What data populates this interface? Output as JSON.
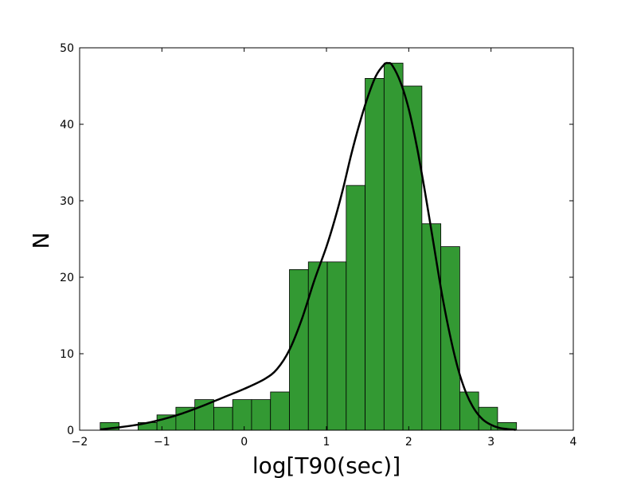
{
  "chart_data": {
    "type": "bar",
    "xlabel": "log[T90(sec)]",
    "ylabel": "N",
    "xlim": [
      -2,
      4
    ],
    "ylim": [
      0,
      50
    ],
    "xticks": [
      -2,
      -1,
      0,
      1,
      2,
      3,
      4
    ],
    "yticks": [
      0,
      10,
      20,
      30,
      40,
      50
    ],
    "bin_width": 0.23,
    "bins": [
      {
        "start": -1.75,
        "count": 1
      },
      {
        "start": -1.52,
        "count": 0
      },
      {
        "start": -1.29,
        "count": 1
      },
      {
        "start": -1.06,
        "count": 2
      },
      {
        "start": -0.83,
        "count": 3
      },
      {
        "start": -0.6,
        "count": 4
      },
      {
        "start": -0.37,
        "count": 3
      },
      {
        "start": -0.14,
        "count": 4
      },
      {
        "start": 0.09,
        "count": 4
      },
      {
        "start": 0.32,
        "count": 5
      },
      {
        "start": 0.55,
        "count": 21
      },
      {
        "start": 0.78,
        "count": 22
      },
      {
        "start": 1.01,
        "count": 22
      },
      {
        "start": 1.24,
        "count": 32
      },
      {
        "start": 1.47,
        "count": 46
      },
      {
        "start": 1.7,
        "count": 48
      },
      {
        "start": 1.93,
        "count": 45
      },
      {
        "start": 2.16,
        "count": 27
      },
      {
        "start": 2.39,
        "count": 24
      },
      {
        "start": 2.62,
        "count": 5
      },
      {
        "start": 2.85,
        "count": 3
      },
      {
        "start": 3.08,
        "count": 1
      }
    ],
    "fit_curve": {
      "x": [
        -1.75,
        -1.5,
        -1.25,
        -1.0,
        -0.75,
        -0.5,
        -0.25,
        0.0,
        0.25,
        0.4,
        0.55,
        0.7,
        0.85,
        1.0,
        1.1,
        1.2,
        1.3,
        1.4,
        1.5,
        1.6,
        1.7,
        1.75,
        1.8,
        1.9,
        2.0,
        2.1,
        2.2,
        2.3,
        2.4,
        2.5,
        2.6,
        2.7,
        2.8,
        2.9,
        3.0,
        3.1,
        3.2,
        3.3
      ],
      "y": [
        0.1,
        0.4,
        0.8,
        1.4,
        2.2,
        3.2,
        4.3,
        5.4,
        6.7,
        8.0,
        10.5,
        14.5,
        19.5,
        24.0,
        27.5,
        31.5,
        36.0,
        40.0,
        43.5,
        46.3,
        47.8,
        48.0,
        47.7,
        45.5,
        42.0,
        37.0,
        31.0,
        24.5,
        18.0,
        12.5,
        8.0,
        4.8,
        2.7,
        1.4,
        0.7,
        0.3,
        0.15,
        0.05
      ]
    },
    "colors": {
      "bar_fill": "#339933",
      "bar_edge": "#000000",
      "curve": "#000000"
    },
    "grid": false
  }
}
